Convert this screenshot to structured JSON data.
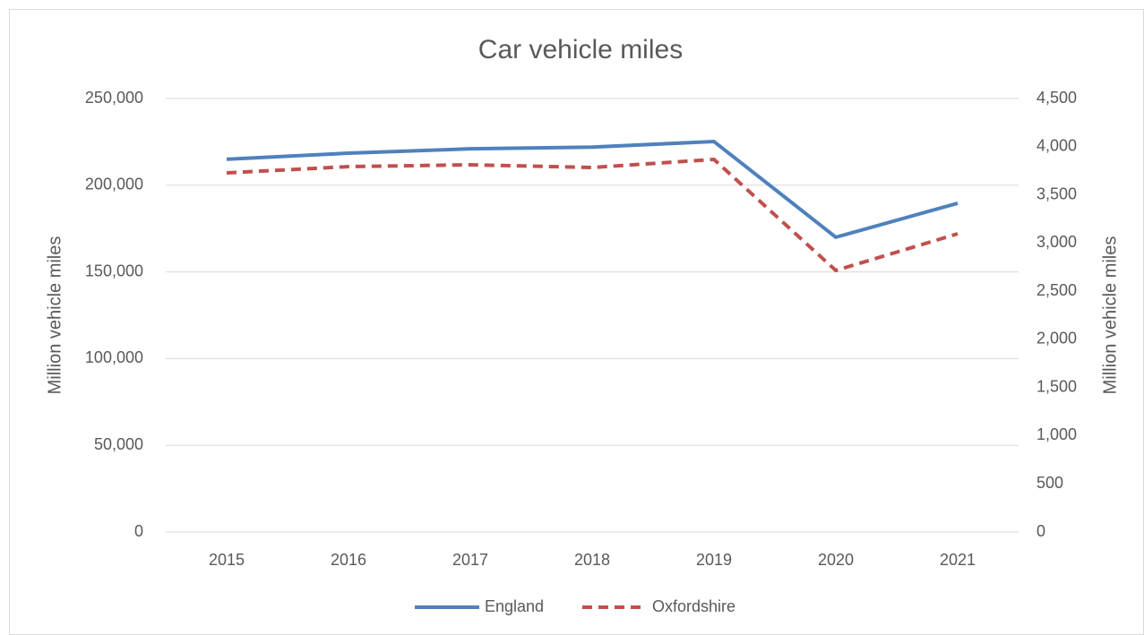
{
  "chart_data": {
    "type": "line",
    "title": "Car vehicle miles",
    "categories": [
      "2015",
      "2016",
      "2017",
      "2018",
      "2019",
      "2020",
      "2021"
    ],
    "series": [
      {
        "name": "England",
        "color": "#4f81bd",
        "dash": false,
        "values": [
          215000,
          218500,
          221000,
          222000,
          225200,
          170000,
          189600
        ]
      },
      {
        "name": "Oxfordshire",
        "color": "#c0504d",
        "dash": true,
        "axis": "y2",
        "values": [
          3728,
          3793,
          3812,
          3784,
          3868,
          2715,
          3096
        ]
      }
    ],
    "ylabel": "Million vehicle miles",
    "y2label": "Million vehicle miles",
    "ylim": [
      0,
      250000
    ],
    "yticks": [
      0,
      {
        "value": 50000,
        "label": "50,000"
      },
      {
        "value": 100000,
        "label": "100,000"
      },
      {
        "value": 150000,
        "label": "150,000"
      },
      {
        "value": 200000,
        "label": "200,000"
      },
      {
        "value": 250000,
        "label": "250,000"
      }
    ],
    "y2lim": [
      0,
      4500
    ],
    "y2ticks": [
      0,
      500,
      {
        "value": 1000,
        "label": "1,000"
      },
      {
        "value": 1500,
        "label": "1,500"
      },
      {
        "value": 2000,
        "label": "2,000"
      },
      {
        "value": 2500,
        "label": "2,500"
      },
      {
        "value": 3000,
        "label": "3,000"
      },
      {
        "value": 3500,
        "label": "3,500"
      },
      {
        "value": 4000,
        "label": "4,000"
      },
      {
        "value": 4500,
        "label": "4,500"
      }
    ],
    "grid": true,
    "legend": "bottom"
  }
}
